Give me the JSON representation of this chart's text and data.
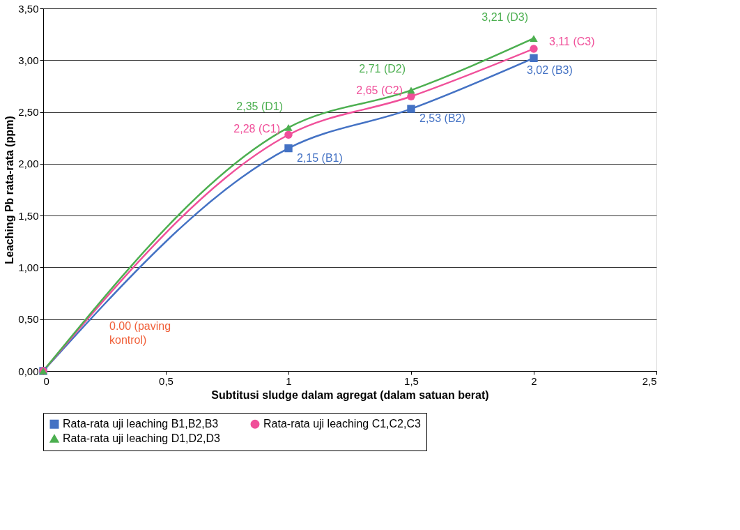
{
  "chart_data": {
    "type": "line",
    "xlabel": "Subtitusi sludge dalam agregat (dalam satuan berat)",
    "ylabel": "Leaching Pb rata-rata (ppm)",
    "x": [
      0,
      1,
      1.5,
      2
    ],
    "series": [
      {
        "name": "Rata-rata uji leaching B1,B2,B3",
        "color": "#4472c4",
        "marker": "square",
        "values": [
          0,
          2.15,
          2.53,
          3.02
        ]
      },
      {
        "name": "Rata-rata uji leaching C1,C2,C3",
        "color": "#f0509a",
        "marker": "circle",
        "values": [
          0,
          2.28,
          2.65,
          3.11
        ]
      },
      {
        "name": "Rata-rata uji leaching D1,D2,D3",
        "color": "#4caf50",
        "marker": "triangle",
        "values": [
          0,
          2.35,
          2.71,
          3.21
        ]
      }
    ],
    "xlim": [
      0,
      2.5
    ],
    "xticks": [
      0,
      {
        "value": 0.5,
        "label": "0,5"
      },
      1,
      {
        "value": 1.5,
        "label": "1,5"
      },
      2,
      {
        "value": 2.5,
        "label": "2,5"
      }
    ],
    "ylim": [
      0,
      3.5
    ],
    "yticks": [
      {
        "value": 0,
        "label": "0,00"
      },
      {
        "value": 0.5,
        "label": "0,50"
      },
      {
        "value": 1,
        "label": "1,00"
      },
      {
        "value": 1.5,
        "label": "1,50"
      },
      {
        "value": 2,
        "label": "2,00"
      },
      {
        "value": 2.5,
        "label": "2,50"
      },
      {
        "value": 3,
        "label": "3,00"
      },
      {
        "value": 3.5,
        "label": "3,50"
      }
    ],
    "grid": "y",
    "legend": "bottom",
    "line_style": "solid",
    "annotations": [
      {
        "text": "2,15 (B1)",
        "x": 1,
        "y": 2.15
      },
      {
        "text": "2,53 (B2)",
        "x": 1.5,
        "y": 2.53
      },
      {
        "text": "3,02 (B3)",
        "x": 2,
        "y": 3.02
      },
      {
        "text": "2,28 (C1)",
        "x": 1,
        "y": 2.28
      },
      {
        "text": "2,65 (C2)",
        "x": 1.5,
        "y": 2.65
      },
      {
        "text": "3,11 (C3)",
        "x": 2,
        "y": 3.11
      },
      {
        "text": "2,35 (D1)",
        "x": 1,
        "y": 2.35
      },
      {
        "text": "2,71 (D2)",
        "x": 1.5,
        "y": 2.71
      },
      {
        "text": "3,21 (D3)",
        "x": 2,
        "y": 3.21
      },
      "0.00 (paving kontrol)"
    ]
  }
}
